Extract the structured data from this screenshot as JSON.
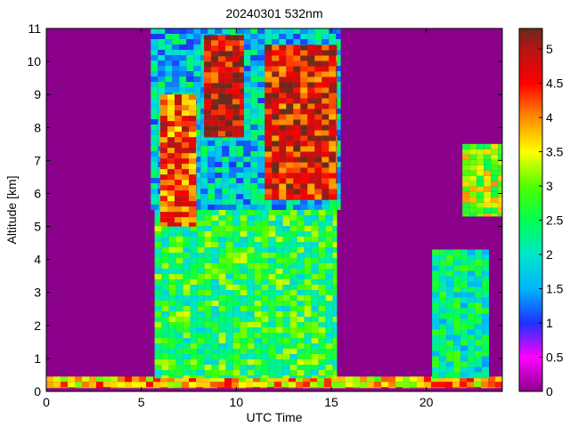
{
  "chart_data": {
    "type": "heatmap",
    "title": "20240301 532nm",
    "xlabel": "UTC Time",
    "ylabel": "Altitude [km]",
    "xlim": [
      0,
      24
    ],
    "ylim": [
      0,
      11
    ],
    "x_ticks": [
      0,
      5,
      10,
      15,
      20
    ],
    "x_tick_labels": [
      "0",
      "5",
      "10",
      "15",
      "20"
    ],
    "y_ticks": [
      0,
      1,
      2,
      3,
      4,
      5,
      6,
      7,
      8,
      9,
      10,
      11
    ],
    "y_tick_labels": [
      "0",
      "1",
      "2",
      "3",
      "4",
      "5",
      "6",
      "7",
      "8",
      "9",
      "10",
      "11"
    ],
    "colorbar": {
      "range": [
        0,
        5.3
      ],
      "ticks": [
        0,
        0.5,
        1,
        1.5,
        2,
        2.5,
        3,
        3.5,
        4,
        4.5,
        5
      ],
      "tick_labels": [
        "0",
        "0.5",
        "1",
        "1.5",
        "2",
        "2.5",
        "3",
        "3.5",
        "4",
        "4.5",
        "5"
      ],
      "colormap_stops": [
        {
          "value": 0.0,
          "color": "#8b008b"
        },
        {
          "value": 0.5,
          "color": "#ff00ff"
        },
        {
          "value": 1.0,
          "color": "#1e32ff"
        },
        {
          "value": 1.5,
          "color": "#00b4ff"
        },
        {
          "value": 2.0,
          "color": "#00e6c8"
        },
        {
          "value": 2.5,
          "color": "#00ff50"
        },
        {
          "value": 3.0,
          "color": "#50ff00"
        },
        {
          "value": 3.5,
          "color": "#ffff00"
        },
        {
          "value": 4.0,
          "color": "#ff8c00"
        },
        {
          "value": 4.5,
          "color": "#ff0000"
        },
        {
          "value": 5.0,
          "color": "#b41414"
        },
        {
          "value": 5.3,
          "color": "#6b2a1a"
        }
      ]
    },
    "regions": [
      {
        "name": "surface-layer",
        "x": [
          0,
          24
        ],
        "y": [
          0.1,
          0.45
        ],
        "level": 3.8
      },
      {
        "name": "daytime-boundary-layer",
        "x": [
          5.7,
          15.3
        ],
        "y": [
          0.4,
          5.5
        ],
        "level": 2.6
      },
      {
        "name": "daytime-noise-column",
        "x": [
          5.5,
          15.5
        ],
        "y": [
          5.5,
          11
        ],
        "level": 1.8
      },
      {
        "name": "cirrus-1",
        "x": [
          8.3,
          10.4
        ],
        "y": [
          7.7,
          10.8
        ],
        "level": 4.8
      },
      {
        "name": "cirrus-2",
        "x": [
          11.5,
          15.3
        ],
        "y": [
          5.8,
          10.5
        ],
        "level": 4.6
      },
      {
        "name": "cloud-early",
        "x": [
          6.0,
          7.9
        ],
        "y": [
          5.0,
          9.0
        ],
        "level": 4.3
      },
      {
        "name": "cloud-evening-low",
        "x": [
          20.3,
          23.3
        ],
        "y": [
          0.4,
          4.3
        ],
        "level": 2.2
      },
      {
        "name": "cloud-evening-high",
        "x": [
          21.9,
          24.0
        ],
        "y": [
          5.3,
          7.5
        ],
        "level": 3.2
      }
    ]
  }
}
